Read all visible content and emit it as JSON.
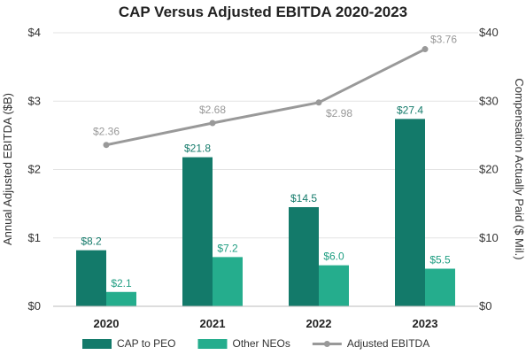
{
  "chart_data": {
    "type": "bar",
    "title": "CAP Versus Adjusted EBITDA 2020-2023",
    "categories": [
      "2020",
      "2021",
      "2022",
      "2023"
    ],
    "ylabel_left": "Annual Adjusted EBITDA ($B)",
    "ylabel_right": "Compensation Actually Paid ($ Mil.)",
    "ylim_left": [
      0,
      4
    ],
    "ylim_right": [
      0,
      40
    ],
    "yticks_left": [
      "$0",
      "$1",
      "$2",
      "$3",
      "$4"
    ],
    "yticks_right": [
      "$0",
      "$10",
      "$20",
      "$30",
      "$40"
    ],
    "grid": true,
    "legend_position": "bottom",
    "series": [
      {
        "name": "CAP to PEO",
        "type": "bar",
        "axis": "right",
        "color": "#137a6a",
        "label_color": "#137a6a",
        "values": [
          8.2,
          21.8,
          14.5,
          27.4
        ],
        "labels": [
          "$8.2",
          "$21.8",
          "$14.5",
          "$27.4"
        ]
      },
      {
        "name": "Other NEOs",
        "type": "bar",
        "axis": "right",
        "color": "#25ad8d",
        "label_color": "#1f9e82",
        "values": [
          2.1,
          7.2,
          6.0,
          5.5
        ],
        "labels": [
          "$2.1",
          "$7.2",
          "$6.0",
          "$5.5"
        ]
      },
      {
        "name": "Adjusted EBITDA",
        "type": "line",
        "axis": "left",
        "color": "#999999",
        "values": [
          2.36,
          2.68,
          2.98,
          3.76
        ],
        "labels": [
          "$2.36",
          "$2.68",
          "$2.98",
          "$3.76"
        ]
      }
    ]
  }
}
